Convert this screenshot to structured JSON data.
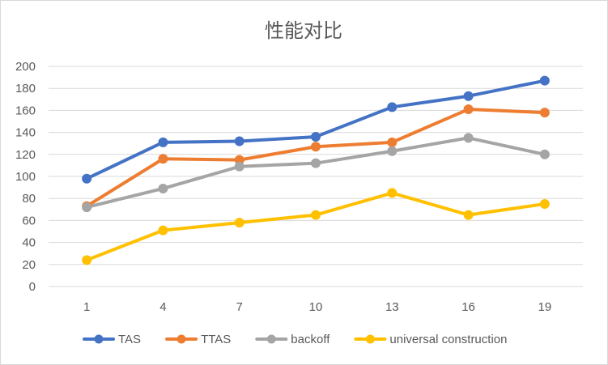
{
  "chart_data": {
    "type": "line",
    "title": "性能对比",
    "xlabel": "",
    "ylabel": "",
    "categories": [
      "1",
      "4",
      "7",
      "10",
      "13",
      "16",
      "19"
    ],
    "ylim": [
      0,
      200
    ],
    "yticks": [
      "0",
      "20",
      "40",
      "60",
      "80",
      "100",
      "120",
      "140",
      "160",
      "180",
      "200"
    ],
    "grid": true,
    "legend_position": "bottom",
    "series": [
      {
        "name": "TAS",
        "color": "#4472c4",
        "values": [
          98,
          131,
          132,
          136,
          163,
          173,
          187
        ]
      },
      {
        "name": "TTAS",
        "color": "#ed7d31",
        "values": [
          73,
          116,
          115,
          127,
          131,
          161,
          158
        ]
      },
      {
        "name": "backoff",
        "color": "#a5a5a5",
        "values": [
          72,
          89,
          109,
          112,
          123,
          135,
          120
        ]
      },
      {
        "name": "universal construction",
        "color": "#ffc000",
        "values": [
          24,
          51,
          58,
          65,
          85,
          65,
          75
        ]
      }
    ]
  }
}
